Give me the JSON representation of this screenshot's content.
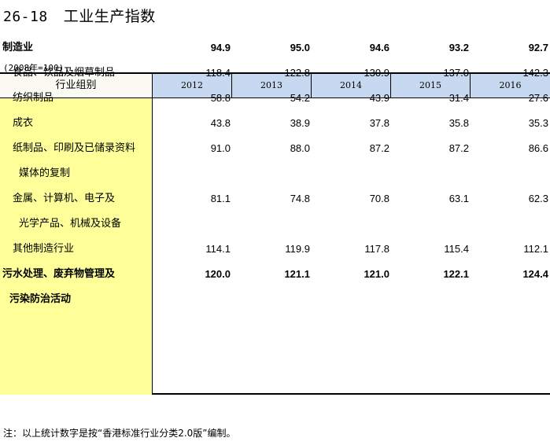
{
  "title": {
    "code": "26-18",
    "name": "工业生产指数"
  },
  "unit": "(2008年=100)",
  "table": {
    "header_label": "行业组别",
    "years": [
      "2012",
      "2013",
      "2014",
      "2015",
      "2016"
    ],
    "rows": [
      {
        "label": "制造业",
        "bold": true,
        "values": [
          "94.9",
          "95.0",
          "94.6",
          "93.2",
          "92.7"
        ]
      },
      {
        "label": "食品、饮品及烟草制品",
        "values": [
          "118.4",
          "122.8",
          "130.9",
          "137.0",
          "142.3"
        ]
      },
      {
        "label": "纺织制品",
        "values": [
          "58.8",
          "54.2",
          "43.9",
          "31.4",
          "27.6"
        ]
      },
      {
        "label": "成衣",
        "values": [
          "43.8",
          "38.9",
          "37.8",
          "35.8",
          "35.3"
        ]
      },
      {
        "label": "纸制品、印刷及已储录资料",
        "values": [
          "91.0",
          "88.0",
          "87.2",
          "87.2",
          "86.6"
        ]
      },
      {
        "label": "媒体的复制",
        "continuation": true,
        "values": [
          "",
          "",
          "",
          "",
          ""
        ]
      },
      {
        "label": "金属、计算机、电子及",
        "values": [
          "81.1",
          "74.8",
          "70.8",
          "63.1",
          "62.3"
        ]
      },
      {
        "label": "光学产品、机械及设备",
        "continuation": true,
        "values": [
          "",
          "",
          "",
          "",
          ""
        ]
      },
      {
        "label": "其他制造行业",
        "values": [
          "114.1",
          "119.9",
          "117.8",
          "115.4",
          "112.1"
        ]
      },
      {
        "label": "污水处理、废弃物管理及",
        "bold": true,
        "values": [
          "120.0",
          "121.1",
          "121.0",
          "122.1",
          "124.4"
        ]
      },
      {
        "label": "污染防治活动",
        "bold": true,
        "continuation": true,
        "values": [
          "",
          "",
          "",
          "",
          ""
        ]
      }
    ]
  },
  "note": "注：以上统计数字是按“香港标准行业分类2.0版”编制。"
}
